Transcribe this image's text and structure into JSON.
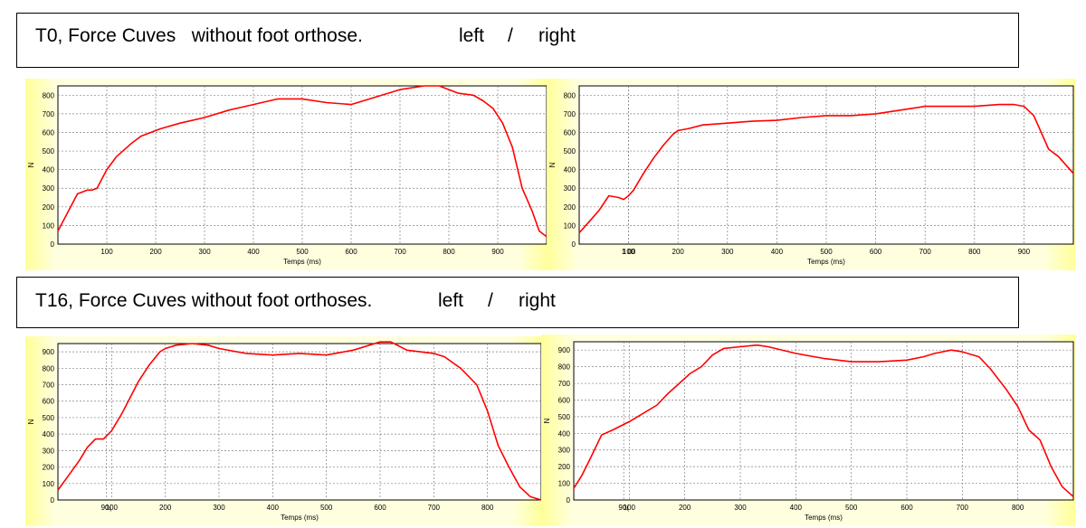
{
  "titles": {
    "t0": {
      "main": "T0, Force Cuves   without foot orthose.",
      "left": "left",
      "sep": "/",
      "right": "right"
    },
    "t16": {
      "main": "T16, Force Cuves without foot orthoses.",
      "left": "left",
      "sep": "/",
      "right": "right"
    }
  },
  "colors": {
    "line": "#ff0000",
    "panel_bg": "#ffff99",
    "grid": "#808080"
  },
  "chart_data": [
    {
      "type": "line",
      "xlabel": "Temps (ms)",
      "ylabel": "N",
      "xlim": [
        0,
        1000
      ],
      "ylim": [
        0,
        850
      ],
      "xticks": [
        "100",
        "200",
        "300",
        "400",
        "500",
        "600",
        "700",
        "800",
        "900"
      ],
      "yticks": [
        "0",
        "100",
        "200",
        "300",
        "400",
        "500",
        "600",
        "700",
        "800"
      ],
      "grid": true,
      "x": [
        0,
        20,
        40,
        50,
        60,
        70,
        80,
        100,
        120,
        150,
        170,
        190,
        210,
        250,
        300,
        350,
        400,
        450,
        500,
        550,
        600,
        650,
        700,
        750,
        780,
        800,
        820,
        850,
        870,
        890,
        910,
        930,
        950,
        970,
        985,
        1000
      ],
      "y": [
        70,
        170,
        270,
        280,
        290,
        290,
        300,
        400,
        470,
        540,
        580,
        600,
        620,
        650,
        680,
        720,
        750,
        780,
        780,
        760,
        750,
        790,
        830,
        850,
        850,
        830,
        810,
        800,
        770,
        730,
        650,
        520,
        300,
        180,
        70,
        40
      ]
    },
    {
      "type": "line",
      "xlabel": "Temps (ms)",
      "ylabel": "N",
      "xlim": [
        0,
        1000
      ],
      "ylim": [
        0,
        850
      ],
      "xticks": [
        "100",
        "200",
        "300",
        "400",
        "500",
        "600",
        "700",
        "800",
        "900",
        "1 00"
      ],
      "yticks": [
        "0",
        "100",
        "200",
        "300",
        "400",
        "500",
        "600",
        "700",
        "800"
      ],
      "grid": true,
      "x": [
        0,
        20,
        40,
        60,
        80,
        90,
        100,
        110,
        130,
        150,
        170,
        190,
        200,
        220,
        250,
        300,
        350,
        400,
        450,
        500,
        550,
        600,
        650,
        700,
        750,
        800,
        850,
        880,
        900,
        920,
        950,
        970,
        1000
      ],
      "y": [
        60,
        120,
        180,
        260,
        250,
        240,
        260,
        290,
        380,
        460,
        530,
        590,
        610,
        620,
        640,
        650,
        660,
        665,
        680,
        690,
        690,
        700,
        720,
        740,
        740,
        740,
        750,
        750,
        740,
        690,
        510,
        470,
        380
      ]
    },
    {
      "type": "line",
      "xlabel": "Temps (ms)",
      "ylabel": "N",
      "xlim": [
        0,
        900
      ],
      "ylim": [
        0,
        950
      ],
      "xticks": [
        "100",
        "200",
        "300",
        "400",
        "500",
        "600",
        "700",
        "800",
        "90("
      ],
      "yticks": [
        "0",
        "100",
        "200",
        "300",
        "400",
        "500",
        "600",
        "700",
        "800",
        "900"
      ],
      "grid": true,
      "x": [
        0,
        20,
        40,
        55,
        70,
        85,
        100,
        120,
        150,
        170,
        190,
        200,
        220,
        250,
        280,
        300,
        350,
        400,
        450,
        500,
        550,
        600,
        620,
        650,
        700,
        720,
        750,
        780,
        800,
        820,
        840,
        860,
        880,
        900
      ],
      "y": [
        60,
        150,
        240,
        320,
        370,
        370,
        420,
        530,
        720,
        820,
        900,
        920,
        940,
        950,
        940,
        920,
        890,
        880,
        890,
        880,
        910,
        960,
        960,
        910,
        890,
        870,
        800,
        700,
        540,
        330,
        200,
        80,
        20,
        0
      ]
    },
    {
      "type": "line",
      "xlabel": "Temps (ms)",
      "ylabel": "N",
      "xlim": [
        0,
        900
      ],
      "ylim": [
        0,
        950
      ],
      "xticks": [
        "100",
        "200",
        "300",
        "400",
        "500",
        "600",
        "700",
        "800",
        "90("
      ],
      "yticks": [
        "0",
        "100",
        "200",
        "300",
        "400",
        "500",
        "600",
        "700",
        "800",
        "900"
      ],
      "grid": true,
      "x": [
        0,
        15,
        30,
        50,
        70,
        100,
        120,
        150,
        170,
        190,
        210,
        230,
        250,
        270,
        300,
        330,
        350,
        400,
        450,
        500,
        550,
        600,
        630,
        650,
        680,
        700,
        730,
        750,
        780,
        800,
        820,
        840,
        860,
        880,
        900
      ],
      "y": [
        70,
        150,
        250,
        390,
        420,
        470,
        510,
        570,
        640,
        700,
        760,
        800,
        870,
        910,
        920,
        930,
        920,
        880,
        850,
        830,
        830,
        840,
        860,
        880,
        900,
        890,
        860,
        790,
        660,
        560,
        420,
        360,
        200,
        80,
        20
      ]
    }
  ]
}
